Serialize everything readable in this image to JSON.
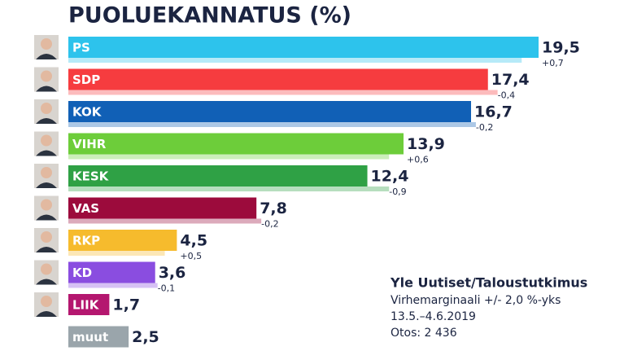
{
  "chart_data": {
    "type": "bar",
    "orientation": "horizontal",
    "title": "PUOLUEKANNATUS (%)",
    "categories": [
      "PS",
      "SDP",
      "KOK",
      "VIHR",
      "KESK",
      "VAS",
      "RKP",
      "KD",
      "LIIK",
      "muut"
    ],
    "colors": [
      "#2dc3ec",
      "#f63c3f",
      "#1160b6",
      "#6dcd3a",
      "#2fa145",
      "#9c0b3c",
      "#f6bb2d",
      "#8a4de0",
      "#b4176f",
      "#9aa5ab"
    ],
    "series": [
      {
        "name": "Kannatus",
        "values": [
          19.5,
          17.4,
          16.7,
          13.9,
          12.4,
          7.8,
          4.5,
          3.6,
          1.7,
          2.5
        ],
        "value_labels": [
          "19,5",
          "17,4",
          "16,7",
          "13,9",
          "12,4",
          "7,8",
          "4,5",
          "3,6",
          "1,7",
          "2,5"
        ]
      },
      {
        "name": "Muutos",
        "values": [
          0.7,
          -0.4,
          -0.2,
          0.6,
          -0.9,
          -0.2,
          0.5,
          -0.1,
          null,
          null
        ],
        "value_labels": [
          "+0,7",
          "-0,4",
          "-0,2",
          "+0,6",
          "-0,9",
          "-0,2",
          "+0,5",
          "-0,1",
          null,
          null
        ]
      }
    ],
    "source": [
      "Yle Uutiset/Taloustutkimus",
      "Virhemarginaali +/- 2,0 %-yks",
      "13.5.–4.6.2019",
      "Otos: 2 436"
    ]
  }
}
